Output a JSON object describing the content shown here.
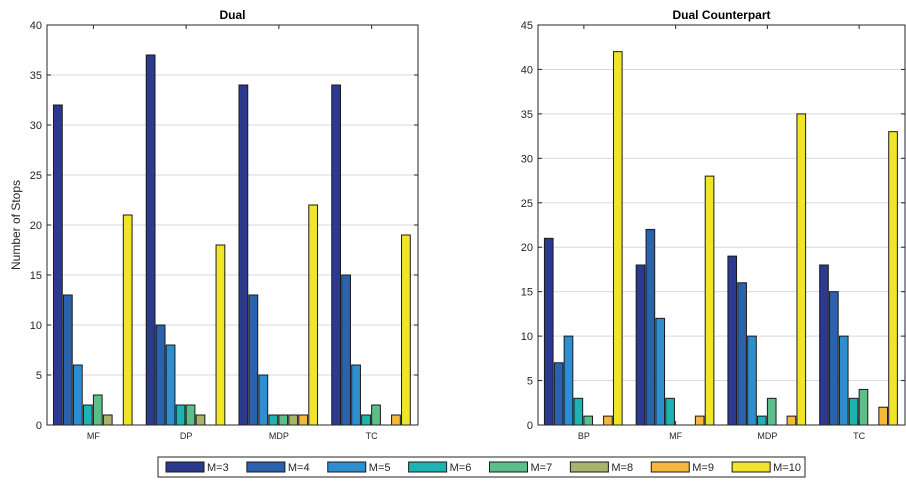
{
  "chart_data": [
    {
      "type": "bar",
      "title": "Dual",
      "ylabel": "Number of Stops",
      "xlabel": "",
      "ylim": [
        0,
        40
      ],
      "yticks": [
        0,
        5,
        10,
        15,
        20,
        25,
        30,
        35,
        40
      ],
      "grid": "horizontal",
      "categories": [
        "MF",
        "DP",
        "MDP",
        "TC"
      ],
      "series": [
        {
          "name": "M=3",
          "values": [
            32,
            37,
            34,
            34
          ]
        },
        {
          "name": "M=4",
          "values": [
            13,
            10,
            13,
            15
          ]
        },
        {
          "name": "M=5",
          "values": [
            6,
            8,
            5,
            6
          ]
        },
        {
          "name": "M=6",
          "values": [
            2,
            2,
            1,
            1
          ]
        },
        {
          "name": "M=7",
          "values": [
            3,
            2,
            1,
            2
          ]
        },
        {
          "name": "M=8",
          "values": [
            1,
            1,
            1,
            0
          ]
        },
        {
          "name": "M=9",
          "values": [
            0,
            0,
            1,
            1
          ]
        },
        {
          "name": "M=10",
          "values": [
            21,
            18,
            22,
            19
          ]
        }
      ]
    },
    {
      "type": "bar",
      "title": "Dual Counterpart",
      "ylabel": "",
      "xlabel": "",
      "ylim": [
        0,
        45
      ],
      "yticks": [
        0,
        5,
        10,
        15,
        20,
        25,
        30,
        35,
        40,
        45
      ],
      "grid": "horizontal",
      "categories": [
        "BP",
        "MF",
        "MDP",
        "TC"
      ],
      "series": [
        {
          "name": "M=3",
          "values": [
            21,
            18,
            19,
            18
          ]
        },
        {
          "name": "M=4",
          "values": [
            7,
            22,
            16,
            15
          ]
        },
        {
          "name": "M=5",
          "values": [
            10,
            12,
            10,
            10
          ]
        },
        {
          "name": "M=6",
          "values": [
            3,
            3,
            1,
            3
          ]
        },
        {
          "name": "M=7",
          "values": [
            1,
            0,
            3,
            4
          ]
        },
        {
          "name": "M=8",
          "values": [
            0,
            0,
            0,
            0
          ]
        },
        {
          "name": "M=9",
          "values": [
            1,
            1,
            1,
            2
          ]
        },
        {
          "name": "M=10",
          "values": [
            42,
            28,
            35,
            33
          ]
        }
      ]
    }
  ],
  "legend": {
    "placement": "bottom",
    "entries": [
      "M=3",
      "M=4",
      "M=5",
      "M=6",
      "M=7",
      "M=8",
      "M=9",
      "M=10"
    ]
  },
  "colors": {
    "M=3": "#2b3a8f",
    "M=4": "#2a62ad",
    "M=5": "#2e8fd0",
    "M=6": "#1db3b3",
    "M=7": "#5cbf8a",
    "M=8": "#aab36a",
    "M=9": "#f5b83d",
    "M=10": "#f0e52a",
    "grid": "#d9d9d9",
    "axis": "#262626"
  }
}
